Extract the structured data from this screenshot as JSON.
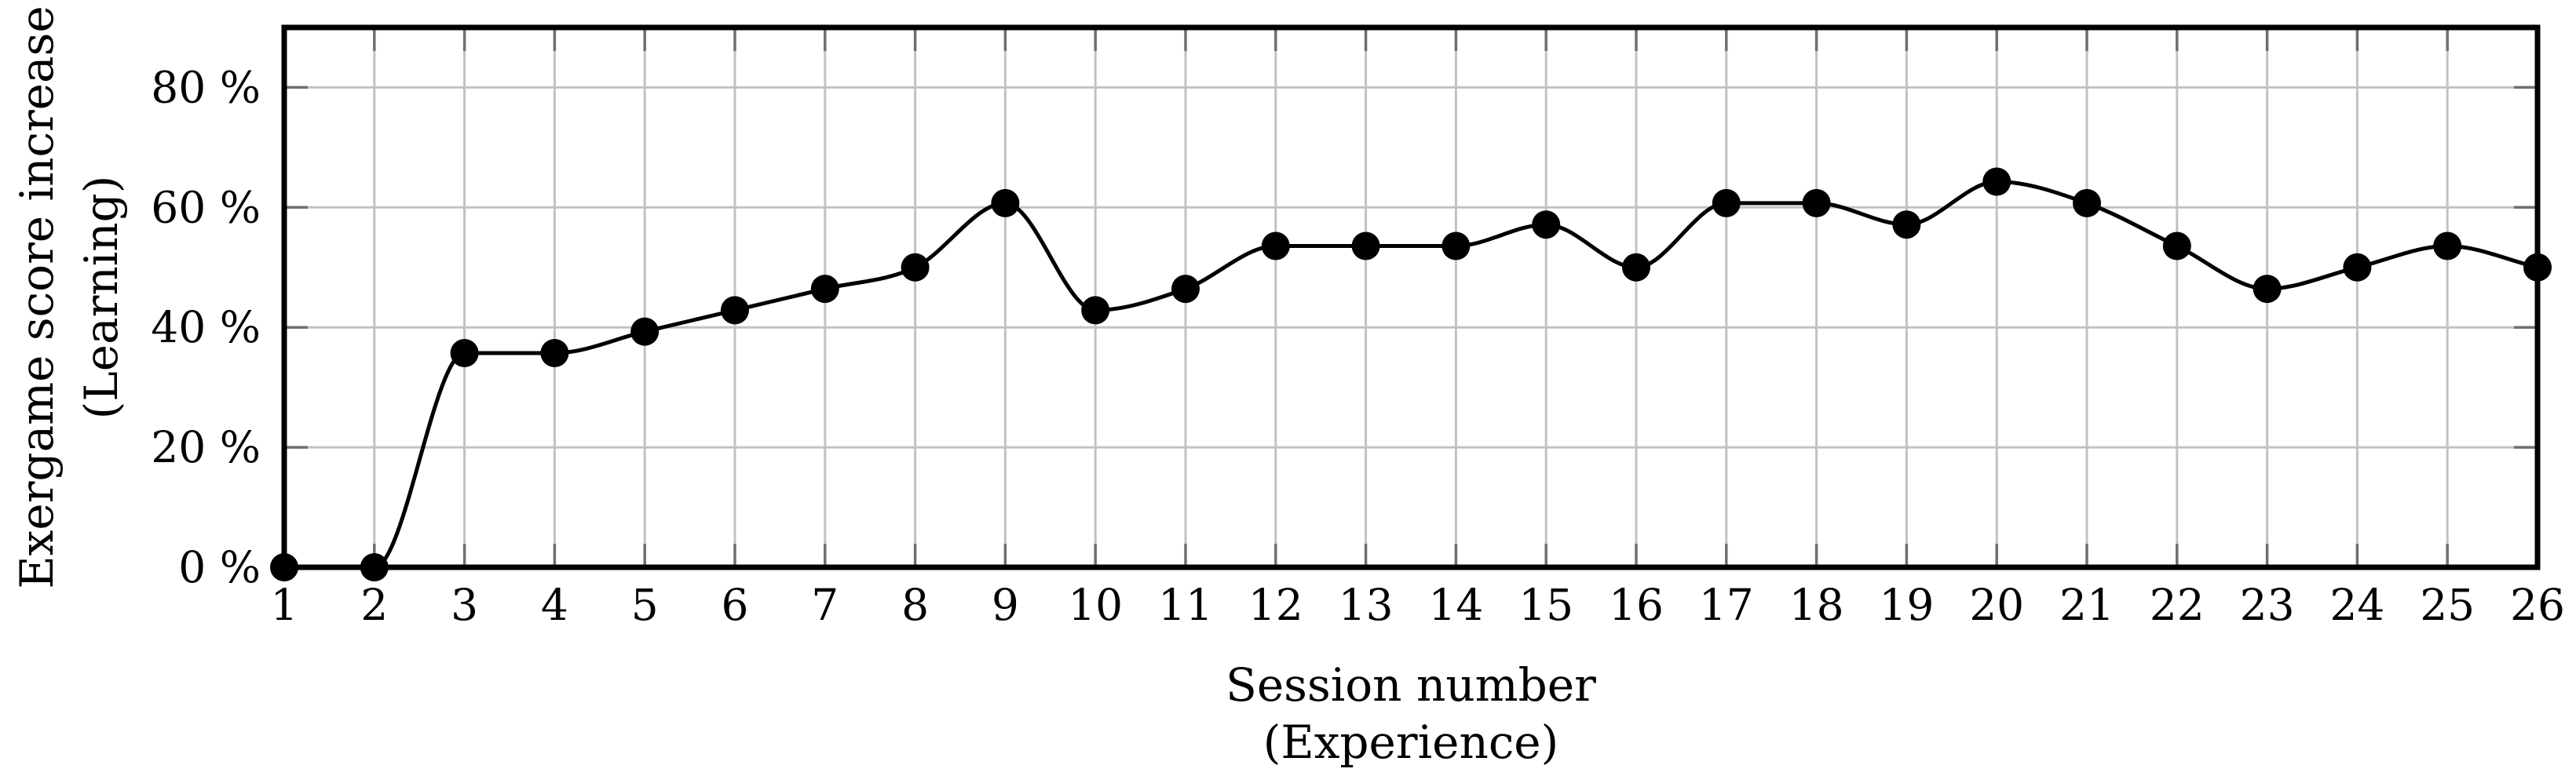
{
  "figure": {
    "background": "#ffffff"
  },
  "chart_data": {
    "type": "line",
    "title": "",
    "xlabel": "Session number",
    "xlabel_sub": "(Experience)",
    "ylabel": "Exergame score increase",
    "ylabel_sub": "(Learning)",
    "x": [
      1,
      2,
      3,
      4,
      5,
      6,
      7,
      8,
      9,
      10,
      11,
      12,
      13,
      14,
      15,
      16,
      17,
      18,
      19,
      20,
      21,
      22,
      23,
      24,
      25,
      26
    ],
    "values": [
      0,
      0,
      35.71,
      35.71,
      39.29,
      42.86,
      46.43,
      50,
      60.71,
      42.86,
      46.43,
      53.57,
      53.57,
      53.57,
      57.14,
      50,
      60.71,
      60.71,
      57.14,
      64.29,
      60.71,
      53.57,
      46.43,
      50,
      53.57,
      50
    ],
    "x_tick_labels": [
      "1",
      "2",
      "3",
      "4",
      "5",
      "6",
      "7",
      "8",
      "9",
      "10",
      "11",
      "12",
      "13",
      "14",
      "15",
      "16",
      "17",
      "18",
      "19",
      "20",
      "21",
      "22",
      "23",
      "24",
      "25",
      "26"
    ],
    "y_ticks": [
      0,
      20,
      40,
      60,
      80
    ],
    "y_tick_labels": [
      "0 %",
      "20 %",
      "40 %",
      "60 %",
      "80 %"
    ],
    "xlim": [
      1,
      26
    ],
    "ylim": [
      0,
      90
    ],
    "grid": true,
    "smooth": true,
    "legend": "none",
    "marker": "filled-circle",
    "colors": {
      "line": "#000000",
      "marker": "#000000",
      "border": "#000000",
      "grid": "#c2c2c2",
      "tick": "#6f6f6f",
      "text": "#000000",
      "background": "#ffffff"
    }
  }
}
